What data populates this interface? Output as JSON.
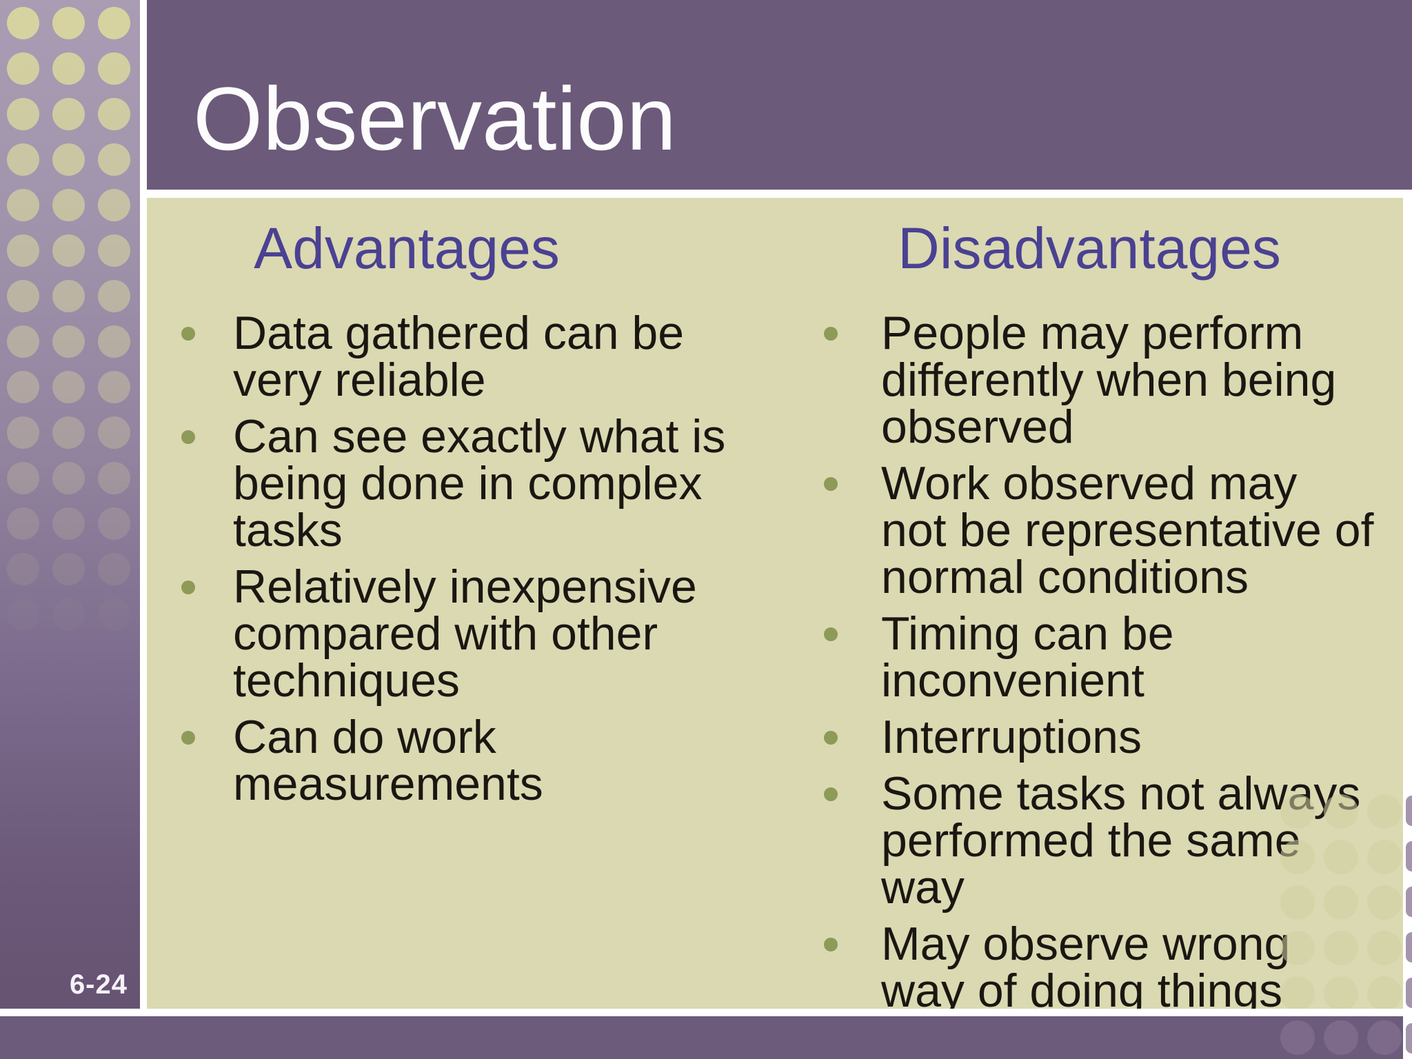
{
  "slide": {
    "title": "Observation",
    "page_number": "6-24",
    "columns": [
      {
        "heading": "Advantages",
        "bullets": [
          "Data gathered can be\nvery reliable",
          "Can see exactly what is\nbeing done in complex\ntasks",
          "Relatively inexpensive\ncompared with other\ntechniques",
          "Can do work\nmeasurements"
        ]
      },
      {
        "heading": "Disadvantages",
        "bullets": [
          "People may perform\ndifferently when being\nobserved",
          "Work observed may\nnot be representative of\nnormal conditions",
          "Timing can be\ninconvenient",
          "Interruptions",
          "Some tasks not always\nperformed the same\nway",
          "May observe wrong\nway of doing things"
        ]
      }
    ]
  },
  "colors": {
    "title_bar": "#6b5a7a",
    "footer_bar": "#6d5b7c",
    "content_background": "#dbd9b2",
    "sidebar_top": "#a99cb3",
    "sidebar_bottom": "#665372",
    "heading_text": "#4a4192",
    "body_text": "#1a1712",
    "bullet_marker": "#8d9a58",
    "sidebar_dots": "#d6d3a0",
    "title_text": "#fdfcfd"
  }
}
